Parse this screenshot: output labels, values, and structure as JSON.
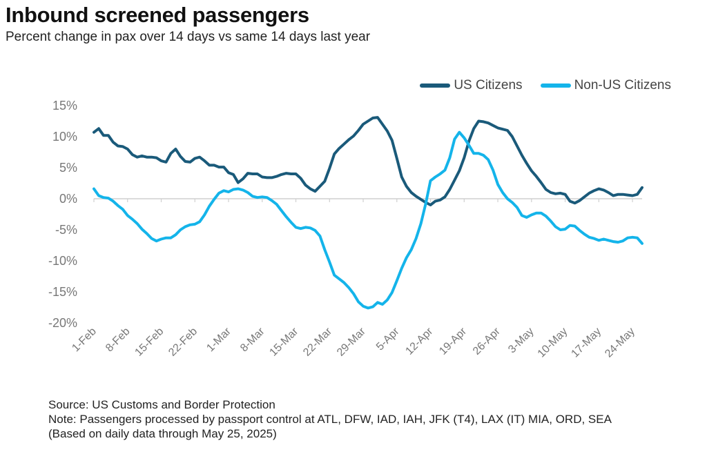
{
  "header": {
    "title": "Inbound screened passengers",
    "subtitle": "Percent change in pax over 14 days vs same 14 days last year"
  },
  "footer": {
    "source": "Source: US Customs and Border Protection",
    "note": "Note: Passengers processed by passport control at ATL, DFW, IAD, IAH, JFK (T4), LAX (IT) MIA, ORD, SEA",
    "based_on": "(Based on daily data through May 25, 2025)"
  },
  "chart_data": {
    "type": "line",
    "title": "Inbound screened passengers",
    "subtitle": "Percent change in pax over 14 days vs same 14 days last year",
    "xlabel": "",
    "ylabel": "",
    "x_start": "2025-02-01",
    "x_end": "2025-05-25",
    "x_tick_labels": [
      "1-Feb",
      "8-Feb",
      "15-Feb",
      "22-Feb",
      "1-Mar",
      "8-Mar",
      "15-Mar",
      "22-Mar",
      "29-Mar",
      "5-Apr",
      "12-Apr",
      "19-Apr",
      "26-Apr",
      "3-May",
      "10-May",
      "17-May",
      "24-May"
    ],
    "y_tick_labels": [
      "15%",
      "10%",
      "5%",
      "0%",
      "-5%",
      "-10%",
      "-15%",
      "-20%"
    ],
    "y_ticks": [
      15,
      10,
      5,
      0,
      -5,
      -10,
      -15,
      -20
    ],
    "ylim": [
      -20,
      15
    ],
    "grid": false,
    "legend_position": "top-right",
    "series": [
      {
        "name": "US Citizens",
        "color": "#1a5a7a",
        "values": [
          10.7,
          11.3,
          10.2,
          10.2,
          9.1,
          8.5,
          8.4,
          8.0,
          7.1,
          6.7,
          6.9,
          6.7,
          6.7,
          6.6,
          6.1,
          5.9,
          7.3,
          8.0,
          6.8,
          6.0,
          5.9,
          6.5,
          6.7,
          6.1,
          5.4,
          5.4,
          5.1,
          5.1,
          4.2,
          3.9,
          2.6,
          3.2,
          4.1,
          4.0,
          4.0,
          3.5,
          3.4,
          3.4,
          3.6,
          3.9,
          4.1,
          4.0,
          4.0,
          3.3,
          2.2,
          1.6,
          1.2,
          2.0,
          2.8,
          4.9,
          7.2,
          8.1,
          8.8,
          9.5,
          10.1,
          11.0,
          12.0,
          12.5,
          13.0,
          13.1,
          12.0,
          10.9,
          9.4,
          6.5,
          3.5,
          2.0,
          1.0,
          0.4,
          -0.1,
          -0.6,
          -1.0,
          -0.4,
          -0.2,
          0.3,
          1.5,
          3.0,
          4.5,
          6.6,
          9.3,
          11.3,
          12.5,
          12.4,
          12.2,
          11.8,
          11.4,
          11.2,
          11.0,
          10.0,
          8.5,
          7.0,
          5.7,
          4.5,
          3.6,
          2.6,
          1.5,
          1.0,
          0.8,
          0.9,
          0.7,
          -0.4,
          -0.7,
          -0.3,
          0.3,
          0.9,
          1.3,
          1.6,
          1.4,
          1.0,
          0.5,
          0.7,
          0.7,
          0.6,
          0.5,
          0.7,
          1.8
        ]
      },
      {
        "name": "Non-US Citizens",
        "color": "#14b4ea",
        "values": [
          1.6,
          0.5,
          0.2,
          0.1,
          -0.4,
          -1.1,
          -1.7,
          -2.7,
          -3.3,
          -4.0,
          -4.9,
          -5.6,
          -6.4,
          -6.8,
          -6.5,
          -6.3,
          -6.3,
          -5.8,
          -5.0,
          -4.5,
          -4.2,
          -4.1,
          -3.7,
          -2.6,
          -1.2,
          -0.1,
          0.9,
          1.3,
          1.1,
          1.5,
          1.6,
          1.4,
          1.0,
          0.4,
          0.2,
          0.3,
          0.2,
          -0.3,
          -0.9,
          -1.9,
          -2.9,
          -3.8,
          -4.6,
          -4.8,
          -4.6,
          -4.7,
          -5.1,
          -6.0,
          -8.2,
          -10.2,
          -12.3,
          -12.9,
          -13.5,
          -14.3,
          -15.3,
          -16.6,
          -17.3,
          -17.6,
          -17.4,
          -16.7,
          -17.0,
          -16.3,
          -15.1,
          -13.2,
          -11.2,
          -9.5,
          -8.2,
          -6.4,
          -4.0,
          -0.8,
          2.9,
          3.5,
          4.0,
          4.6,
          6.6,
          9.6,
          10.7,
          9.8,
          8.6,
          7.3,
          7.3,
          7.0,
          6.3,
          4.6,
          2.3,
          1.0,
          0.0,
          -0.6,
          -1.4,
          -2.7,
          -3.0,
          -2.6,
          -2.3,
          -2.3,
          -2.8,
          -3.6,
          -4.5,
          -5.0,
          -4.9,
          -4.3,
          -4.4,
          -5.1,
          -5.7,
          -6.2,
          -6.4,
          -6.7,
          -6.5,
          -6.7,
          -6.9,
          -7.0,
          -6.8,
          -6.3,
          -6.2,
          -6.3,
          -7.2
        ]
      }
    ]
  }
}
